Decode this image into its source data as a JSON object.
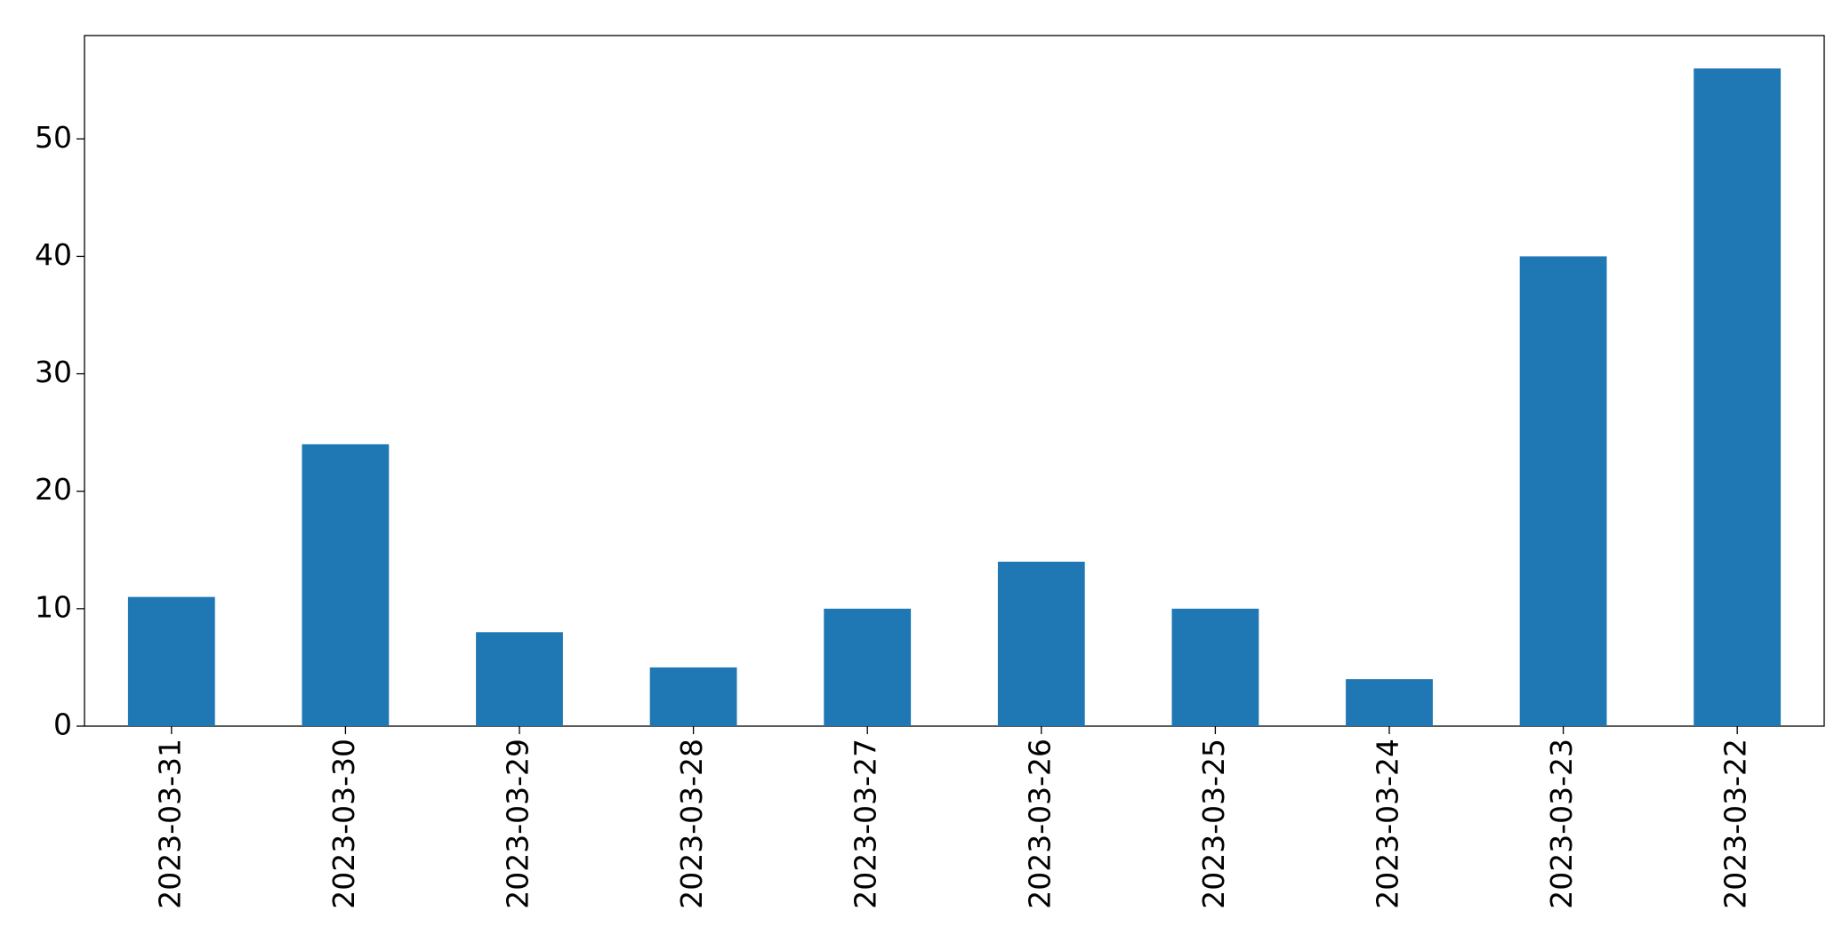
{
  "chart_data": {
    "type": "bar",
    "categories": [
      "2023-03-31",
      "2023-03-30",
      "2023-03-29",
      "2023-03-28",
      "2023-03-27",
      "2023-03-26",
      "2023-03-25",
      "2023-03-24",
      "2023-03-23",
      "2023-03-22"
    ],
    "values": [
      11,
      24,
      8,
      5,
      10,
      14,
      10,
      4,
      40,
      56
    ],
    "color": "#1f77b4",
    "ylim": [
      0,
      58.8
    ],
    "yticks": [
      0,
      10,
      20,
      30,
      40,
      50
    ],
    "grid": false
  }
}
